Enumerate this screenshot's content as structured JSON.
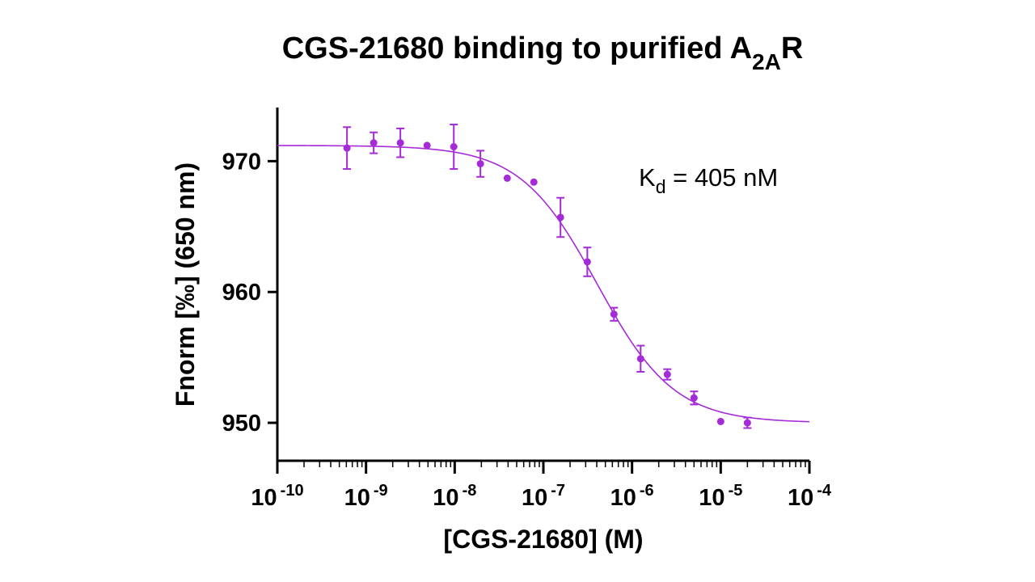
{
  "chart_data": {
    "type": "scatter",
    "title": "CGS-21680 binding to purified A",
    "title_subscript": "2A",
    "title_suffix": "R",
    "xlabel": "[CGS-21680] (M)",
    "ylabel": "Fnorm [‰] (650 nm)",
    "x_scale": "log",
    "xlim": [
      1e-10,
      0.0001
    ],
    "ylim": [
      947.1,
      974.1
    ],
    "x_ticks": [
      {
        "value": 1e-10,
        "base": "10",
        "exp": "-10"
      },
      {
        "value": 1e-09,
        "base": "10",
        "exp": "-9"
      },
      {
        "value": 1e-08,
        "base": "10",
        "exp": "-8"
      },
      {
        "value": 1e-07,
        "base": "10",
        "exp": "-7"
      },
      {
        "value": 1e-06,
        "base": "10",
        "exp": "-6"
      },
      {
        "value": 1e-05,
        "base": "10",
        "exp": "-5"
      },
      {
        "value": 0.0001,
        "base": "10",
        "exp": "-4"
      }
    ],
    "y_ticks": [
      950,
      960,
      970
    ],
    "color": "#a52bd8",
    "points": [
      {
        "x": 6.1e-10,
        "y": 971.0,
        "err": 1.6
      },
      {
        "x": 1.22e-09,
        "y": 971.4,
        "err": 0.8
      },
      {
        "x": 2.44e-09,
        "y": 971.4,
        "err": 1.1
      },
      {
        "x": 4.88e-09,
        "y": 971.2,
        "err": 0.0
      },
      {
        "x": 9.77e-09,
        "y": 971.1,
        "err": 1.7
      },
      {
        "x": 1.95e-08,
        "y": 969.8,
        "err": 1.0
      },
      {
        "x": 3.91e-08,
        "y": 968.7,
        "err": 0.0
      },
      {
        "x": 7.81e-08,
        "y": 968.4,
        "err": 0.0
      },
      {
        "x": 1.56e-07,
        "y": 965.7,
        "err": 1.5
      },
      {
        "x": 3.13e-07,
        "y": 962.3,
        "err": 1.1
      },
      {
        "x": 6.25e-07,
        "y": 958.3,
        "err": 0.5
      },
      {
        "x": 1.25e-06,
        "y": 954.9,
        "err": 1.0
      },
      {
        "x": 2.5e-06,
        "y": 953.7,
        "err": 0.4
      },
      {
        "x": 5e-06,
        "y": 951.9,
        "err": 0.5
      },
      {
        "x": 1e-05,
        "y": 950.1,
        "err": 0.0
      },
      {
        "x": 2e-05,
        "y": 950.0,
        "err": 0.4
      }
    ],
    "fit": {
      "top": 971.2,
      "bottom": 950.0,
      "kd": 4.05e-07,
      "x_range": [
        1e-10,
        0.0001
      ]
    },
    "annotation": {
      "prefix": "K",
      "subscript": "d",
      "text": " = 405 nM"
    }
  }
}
